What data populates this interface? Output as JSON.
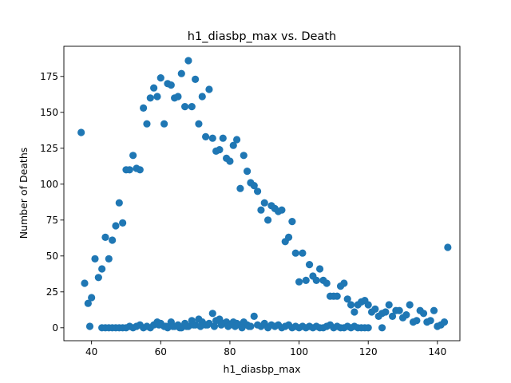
{
  "chart_data": {
    "type": "scatter",
    "title": "h1_diasbp_max vs. Death",
    "xlabel": "h1_diasbp_max",
    "ylabel": "Number of Deaths",
    "xlim": [
      32.0,
      146.5
    ],
    "ylim": [
      -9.0,
      196.0
    ],
    "xticks": [
      40,
      60,
      80,
      100,
      120,
      140
    ],
    "yticks": [
      0,
      25,
      50,
      75,
      100,
      125,
      150,
      175
    ],
    "grid": false,
    "color": "#1f77b4",
    "points": [
      [
        37,
        136
      ],
      [
        38,
        31
      ],
      [
        39,
        17
      ],
      [
        39.5,
        1
      ],
      [
        40,
        21
      ],
      [
        41,
        48
      ],
      [
        42,
        35
      ],
      [
        43,
        41
      ],
      [
        43,
        0
      ],
      [
        44,
        63
      ],
      [
        45,
        48
      ],
      [
        46,
        61
      ],
      [
        47,
        71
      ],
      [
        48,
        87
      ],
      [
        49,
        73
      ],
      [
        50,
        110
      ],
      [
        51,
        110
      ],
      [
        52,
        120
      ],
      [
        53,
        111
      ],
      [
        54,
        110
      ],
      [
        55,
        153
      ],
      [
        56,
        142
      ],
      [
        57,
        160
      ],
      [
        58,
        167
      ],
      [
        59,
        161
      ],
      [
        60,
        174
      ],
      [
        61,
        142
      ],
      [
        62,
        170
      ],
      [
        63,
        169
      ],
      [
        64,
        160
      ],
      [
        65,
        161
      ],
      [
        66,
        177
      ],
      [
        67,
        154
      ],
      [
        68,
        186
      ],
      [
        69,
        154
      ],
      [
        70,
        173
      ],
      [
        71,
        142
      ],
      [
        72,
        161
      ],
      [
        73,
        133
      ],
      [
        74,
        166
      ],
      [
        75,
        132
      ],
      [
        76,
        123
      ],
      [
        77,
        124
      ],
      [
        78,
        132
      ],
      [
        79,
        118
      ],
      [
        80,
        116
      ],
      [
        81,
        127
      ],
      [
        82,
        131
      ],
      [
        83,
        97
      ],
      [
        84,
        120
      ],
      [
        85,
        109
      ],
      [
        86,
        101
      ],
      [
        87,
        99
      ],
      [
        88,
        95
      ],
      [
        89,
        82
      ],
      [
        90,
        87
      ],
      [
        91,
        75
      ],
      [
        92,
        85
      ],
      [
        93,
        83
      ],
      [
        94,
        81
      ],
      [
        95,
        82
      ],
      [
        96,
        60
      ],
      [
        97,
        63
      ],
      [
        98,
        74
      ],
      [
        99,
        52
      ],
      [
        100,
        32
      ],
      [
        101,
        52
      ],
      [
        102,
        33
      ],
      [
        103,
        44
      ],
      [
        104,
        36
      ],
      [
        105,
        33
      ],
      [
        106,
        41
      ],
      [
        107,
        33
      ],
      [
        108,
        31
      ],
      [
        109,
        22
      ],
      [
        110,
        22
      ],
      [
        111,
        22
      ],
      [
        112,
        29
      ],
      [
        113,
        31
      ],
      [
        114,
        20
      ],
      [
        115,
        16
      ],
      [
        116,
        11
      ],
      [
        117,
        16
      ],
      [
        118,
        18
      ],
      [
        119,
        19
      ],
      [
        120,
        16
      ],
      [
        121,
        11
      ],
      [
        122,
        13
      ],
      [
        123,
        8
      ],
      [
        124,
        10
      ],
      [
        125,
        11
      ],
      [
        126,
        16
      ],
      [
        127,
        8
      ],
      [
        128,
        12
      ],
      [
        129,
        12
      ],
      [
        130,
        7
      ],
      [
        131,
        9
      ],
      [
        132,
        16
      ],
      [
        133,
        4
      ],
      [
        134,
        5
      ],
      [
        135,
        12
      ],
      [
        136,
        10
      ],
      [
        137,
        4
      ],
      [
        138,
        5
      ],
      [
        139,
        12
      ],
      [
        140,
        1
      ],
      [
        141,
        2
      ],
      [
        142,
        4
      ],
      [
        143,
        56
      ],
      [
        44,
        0
      ],
      [
        45,
        0
      ],
      [
        46,
        0
      ],
      [
        47,
        0
      ],
      [
        48,
        0
      ],
      [
        49,
        0
      ],
      [
        50,
        0
      ],
      [
        51,
        1
      ],
      [
        52,
        0
      ],
      [
        53,
        1
      ],
      [
        54,
        2
      ],
      [
        55,
        0
      ],
      [
        56,
        1
      ],
      [
        57,
        0
      ],
      [
        58,
        2
      ],
      [
        59,
        4
      ],
      [
        60,
        3
      ],
      [
        61,
        1
      ],
      [
        62,
        0
      ],
      [
        63,
        4
      ],
      [
        64,
        1
      ],
      [
        65,
        2
      ],
      [
        66,
        0
      ],
      [
        67,
        3
      ],
      [
        68,
        1
      ],
      [
        69,
        5
      ],
      [
        70,
        2
      ],
      [
        71,
        6
      ],
      [
        72,
        4
      ],
      [
        73,
        2
      ],
      [
        74,
        3
      ],
      [
        75,
        10
      ],
      [
        76,
        5
      ],
      [
        77,
        6
      ],
      [
        78,
        3
      ],
      [
        79,
        4
      ],
      [
        80,
        2
      ],
      [
        81,
        4
      ],
      [
        82,
        3
      ],
      [
        83,
        2
      ],
      [
        84,
        4
      ],
      [
        85,
        2
      ],
      [
        86,
        1
      ],
      [
        87,
        8
      ],
      [
        88,
        2
      ],
      [
        89,
        1
      ],
      [
        90,
        3
      ],
      [
        91,
        0
      ],
      [
        92,
        2
      ],
      [
        93,
        1
      ],
      [
        94,
        2
      ],
      [
        95,
        0
      ],
      [
        96,
        1
      ],
      [
        97,
        2
      ],
      [
        98,
        0
      ],
      [
        99,
        1
      ],
      [
        100,
        0
      ],
      [
        101,
        1
      ],
      [
        102,
        0
      ],
      [
        103,
        1
      ],
      [
        104,
        0
      ],
      [
        105,
        1
      ],
      [
        106,
        0
      ],
      [
        107,
        0
      ],
      [
        108,
        1
      ],
      [
        109,
        2
      ],
      [
        110,
        0
      ],
      [
        111,
        1
      ],
      [
        112,
        0
      ],
      [
        113,
        0
      ],
      [
        114,
        1
      ],
      [
        115,
        0
      ],
      [
        116,
        1
      ],
      [
        117,
        0
      ],
      [
        118,
        0
      ],
      [
        119,
        0
      ],
      [
        120,
        0
      ],
      [
        124,
        0
      ],
      [
        59.5,
        2
      ],
      [
        61.5,
        1
      ],
      [
        63.5,
        1
      ],
      [
        65.5,
        0
      ],
      [
        67.5,
        1
      ],
      [
        69.5,
        2
      ],
      [
        71.5,
        1
      ],
      [
        73.5,
        2
      ],
      [
        75.5,
        1
      ],
      [
        77.5,
        2
      ],
      [
        79.5,
        1
      ],
      [
        81.5,
        1
      ],
      [
        83.5,
        0
      ],
      [
        85.5,
        1
      ]
    ]
  }
}
